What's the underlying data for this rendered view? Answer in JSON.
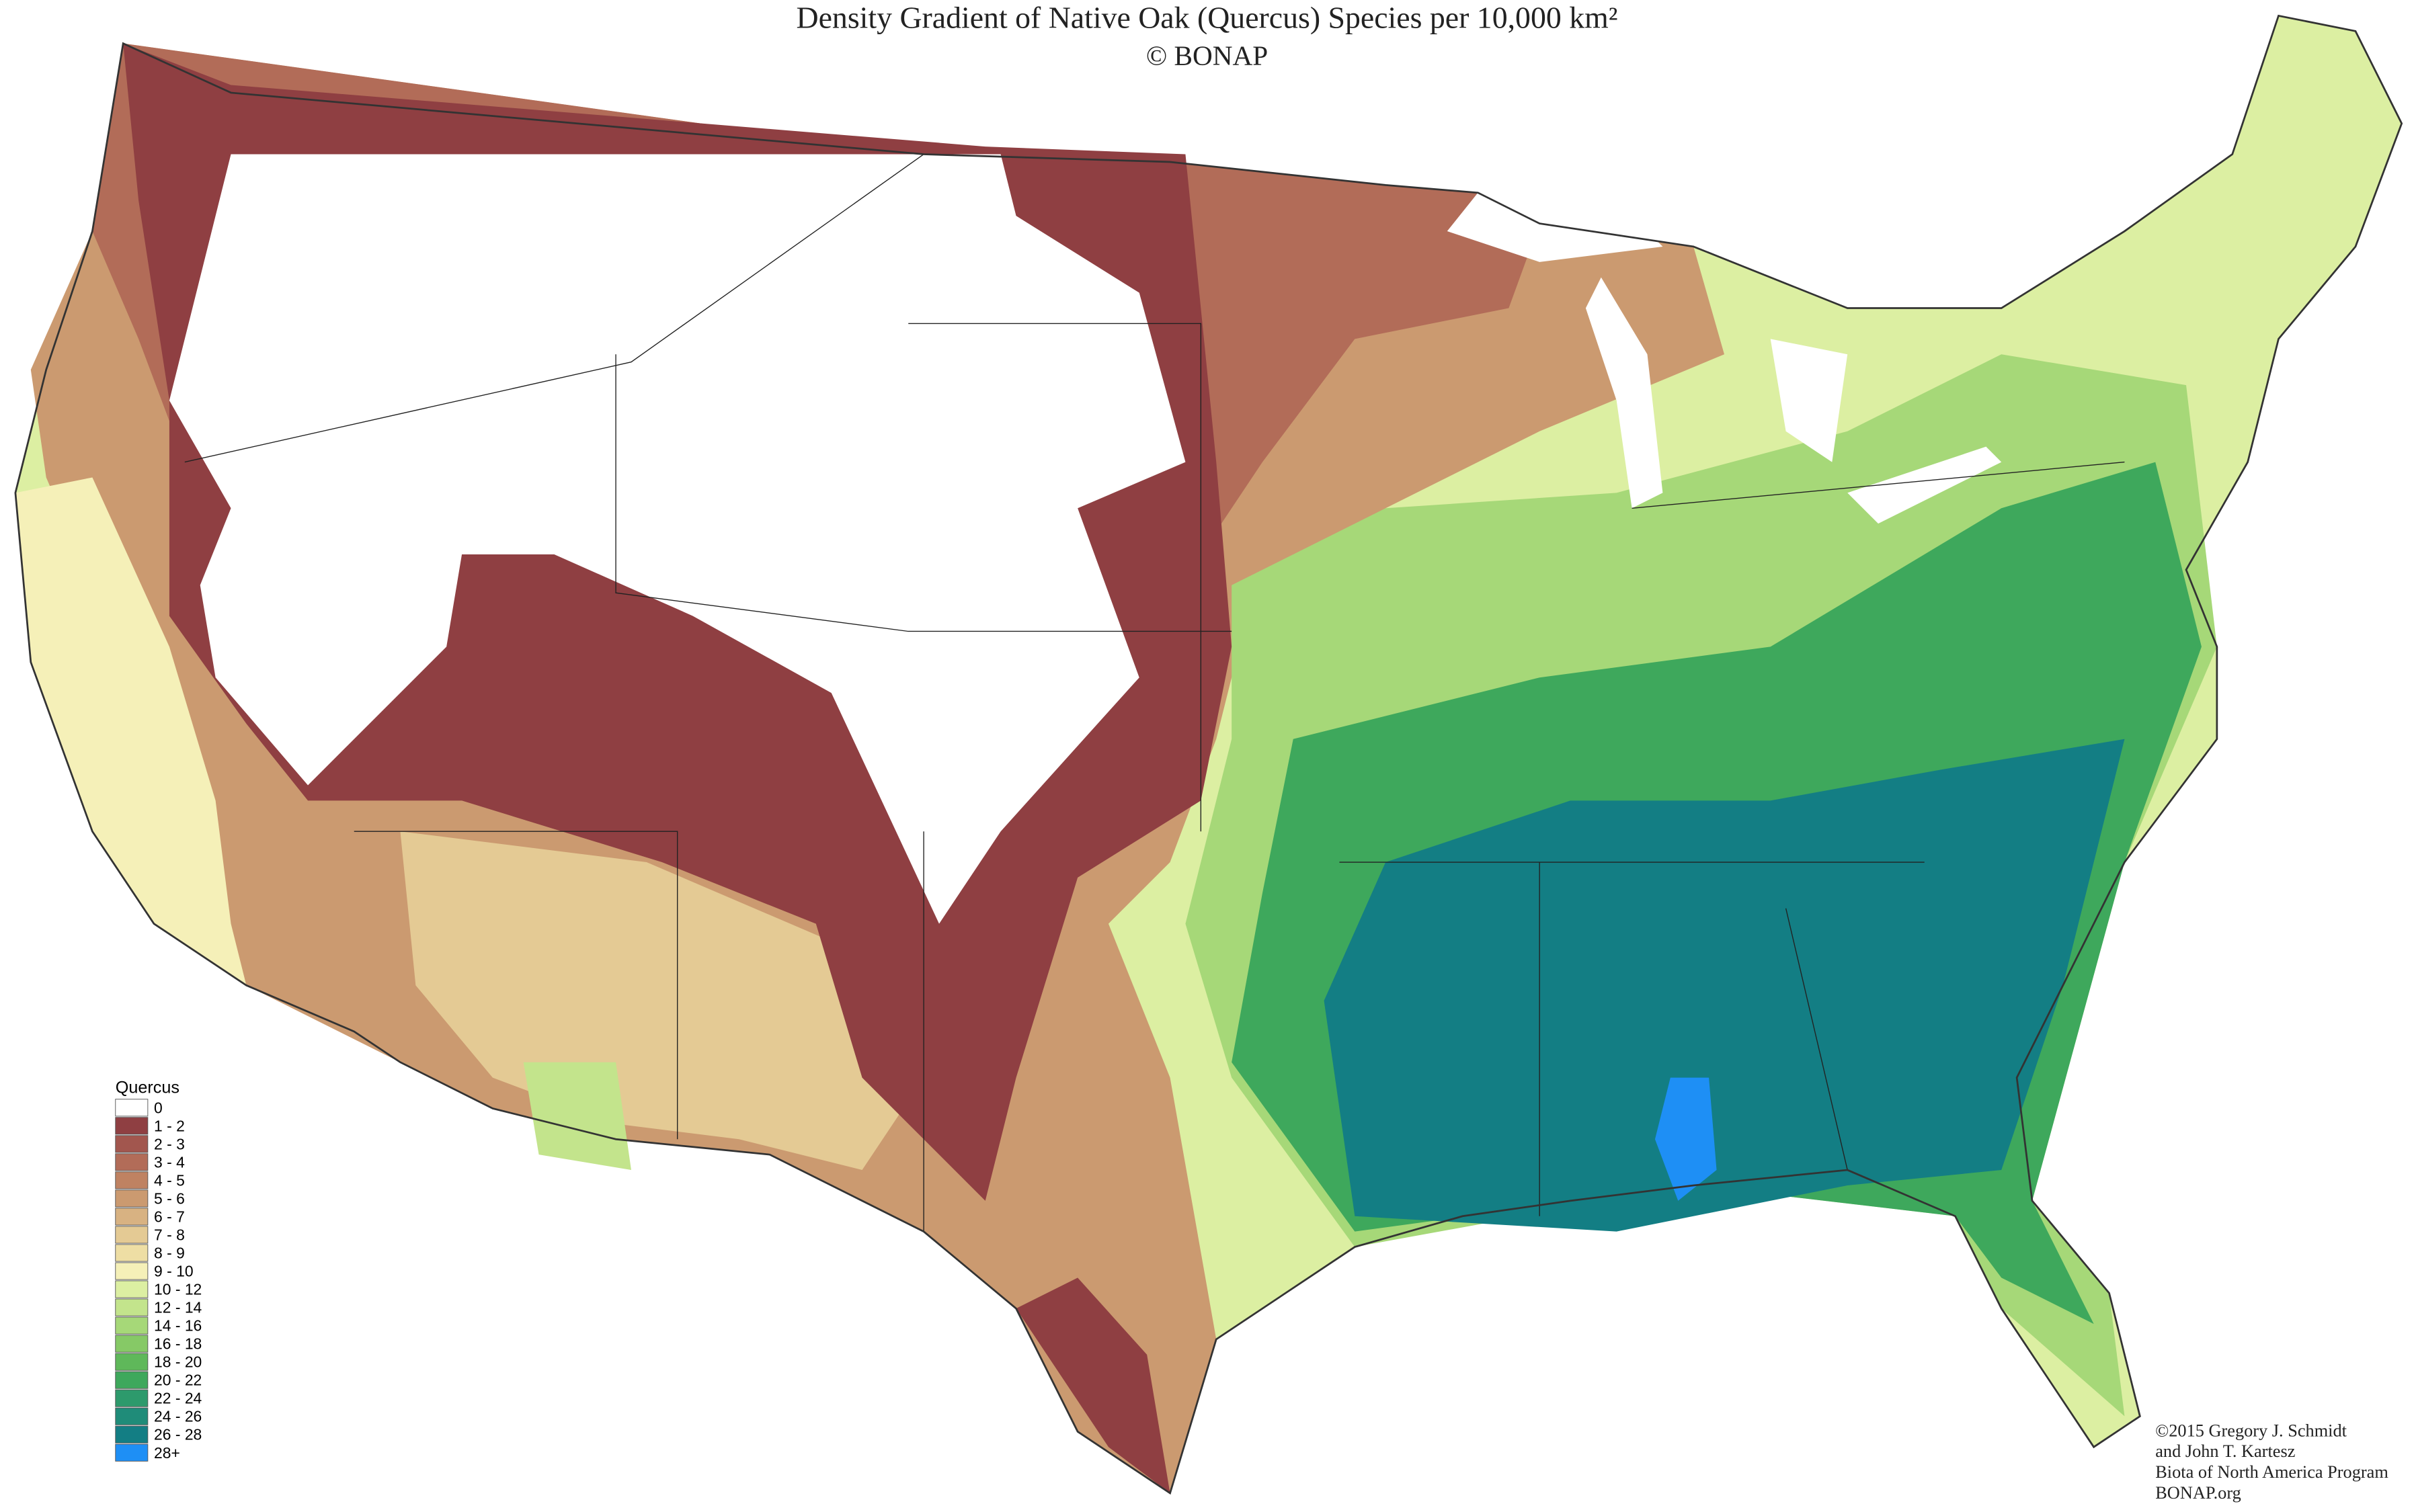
{
  "title": "Density Gradient of Native Oak (Quercus) Species per 10,000 km²",
  "subtitle": "© BONAP",
  "legend": {
    "title": "Quercus",
    "items": [
      {
        "label": "0",
        "color": "#ffffff"
      },
      {
        "label": "1 - 2",
        "color": "#8f3f42"
      },
      {
        "label": "2 - 3",
        "color": "#a2564e"
      },
      {
        "label": "3 - 4",
        "color": "#b26c58"
      },
      {
        "label": "4 - 5",
        "color": "#bf8262"
      },
      {
        "label": "5 - 6",
        "color": "#cb9a70"
      },
      {
        "label": "6 - 7",
        "color": "#d8b282"
      },
      {
        "label": "7 - 8",
        "color": "#e4ca94"
      },
      {
        "label": "8 - 9",
        "color": "#eedea4"
      },
      {
        "label": "9 - 10",
        "color": "#f5f0b8"
      },
      {
        "label": "10 - 12",
        "color": "#dcefa2"
      },
      {
        "label": "12 - 14",
        "color": "#c3e48c"
      },
      {
        "label": "14 - 16",
        "color": "#a6d878"
      },
      {
        "label": "16 - 18",
        "color": "#86c966"
      },
      {
        "label": "18 - 20",
        "color": "#5fb85a"
      },
      {
        "label": "20 - 22",
        "color": "#3ea85c"
      },
      {
        "label": "22 - 24",
        "color": "#2d9a6c"
      },
      {
        "label": "24 - 26",
        "color": "#1f8c79"
      },
      {
        "label": "26 - 28",
        "color": "#137e84"
      },
      {
        "label": "28+",
        "color": "#1e8ff5"
      }
    ]
  },
  "credits": [
    "©2015 Gregory J. Schmidt",
    "and John T. Kartesz",
    "Biota of North America Program",
    "BONAP.org"
  ]
}
